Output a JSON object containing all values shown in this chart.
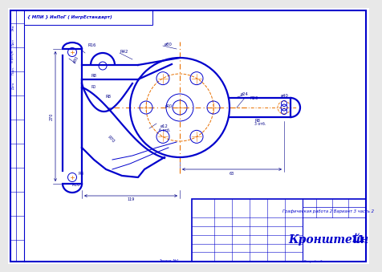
{
  "bg_color": "#e8e8e8",
  "page_color": "#ffffff",
  "line_color": "#0000cc",
  "orange_color": "#e87000",
  "dim_color": "#000088",
  "title_block": {
    "title": "Кронштейн",
    "subtitle": "Графическая работа 2 Вариант 3 часть 2",
    "sheet": "11"
  },
  "stamp_text": "{ МПИ } ИнПоГ ( ИнгрЕстандарт)"
}
